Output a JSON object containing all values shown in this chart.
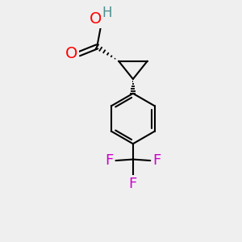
{
  "bg_color": "#efefef",
  "atom_colors": {
    "O": "#ff0000",
    "H": "#4a8f8f",
    "F": "#cc00cc",
    "C": "#000000"
  },
  "bond_color": "#000000",
  "bond_width": 1.5,
  "font_size_atom": 13
}
